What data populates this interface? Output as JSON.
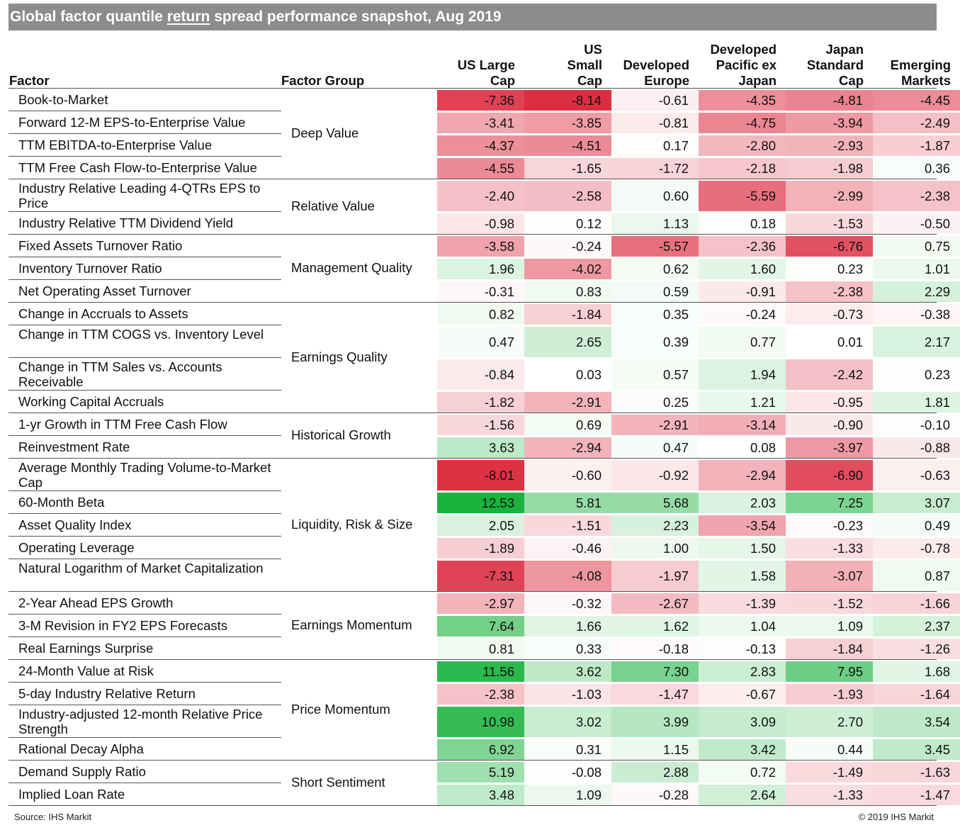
{
  "title": {
    "before": "Global factor quantile ",
    "underlined": "return",
    "after": " spread performance snapshot, Aug 2019"
  },
  "headers": {
    "factor": "Factor",
    "group": "Factor Group",
    "columns": [
      "US Large\nCap",
      "US\nSmall\nCap",
      "Developed\nEurope",
      "Developed\nPacific ex\nJapan",
      "Japan\nStandard\nCap",
      "Emerging\nMarkets"
    ]
  },
  "colors": {
    "negative": "#dc2c40",
    "positive": "#18b23c",
    "neutral": "#ffffff",
    "title_bar": "#8c8c8c"
  },
  "chart_data": {
    "type": "table",
    "title": "Global factor quantile return spread performance snapshot, Aug 2019",
    "columns": [
      "US Large Cap",
      "US Small Cap",
      "Developed Europe",
      "Developed Pacific ex Japan",
      "Japan Standard Cap",
      "Emerging Markets"
    ],
    "groups": [
      {
        "name": "Deep Value",
        "rows": [
          {
            "factor": "Book-to-Market",
            "values": [
              -7.36,
              -8.14,
              -0.61,
              -4.35,
              -4.81,
              -4.45
            ],
            "labels": [
              "-7.36",
              "-8.14",
              "-0.61",
              "-4.35",
              "-4.81",
              "-4.45"
            ]
          },
          {
            "factor": "Forward 12-M EPS-to-Enterprise Value",
            "values": [
              -3.41,
              -3.85,
              -0.81,
              -4.75,
              -3.94,
              -2.49
            ],
            "labels": [
              "-3.41",
              "-3.85",
              "-0.81",
              "-4.75",
              "-3.94",
              "-2.49"
            ]
          },
          {
            "factor": "TTM EBITDA-to-Enterprise Value",
            "values": [
              -4.37,
              -4.51,
              0.17,
              -2.8,
              -2.93,
              -1.87
            ],
            "labels": [
              "-4.37",
              "-4.51",
              "0.17",
              "-2.80",
              "-2.93",
              "-1.87"
            ]
          },
          {
            "factor": "TTM Free Cash Flow-to-Enterprise Value",
            "values": [
              -4.55,
              -1.65,
              -1.72,
              -2.18,
              -1.98,
              0.36
            ],
            "labels": [
              "-4.55",
              "-1.65",
              "-1.72",
              "-2.18",
              "-1.98",
              "0.36"
            ]
          }
        ]
      },
      {
        "name": "Relative Value",
        "rows": [
          {
            "factor": "Industry Relative Leading 4-QTRs EPS to Price",
            "values": [
              -2.4,
              -2.58,
              0.6,
              -5.59,
              -2.99,
              -2.38
            ],
            "labels": [
              "-2.40",
              "-2.58",
              "0.60",
              "-5.59",
              "-2.99",
              "-2.38"
            ]
          },
          {
            "factor": "Industry Relative TTM Dividend Yield",
            "values": [
              -0.98,
              0.12,
              1.13,
              0.18,
              -1.53,
              -0.5
            ],
            "labels": [
              "-0.98",
              "0.12",
              "1.13",
              "0.18",
              "-1.53",
              "-0.50"
            ]
          }
        ]
      },
      {
        "name": "Management Quality",
        "rows": [
          {
            "factor": "Fixed Assets Turnover Ratio",
            "values": [
              -3.58,
              -0.24,
              -5.57,
              -2.36,
              -6.76,
              0.75
            ],
            "labels": [
              "-3.58",
              "-0.24",
              "-5.57",
              "-2.36",
              "-6.76",
              "0.75"
            ]
          },
          {
            "factor": "Inventory Turnover Ratio",
            "values": [
              1.96,
              -4.02,
              0.62,
              1.6,
              0.23,
              1.01
            ],
            "labels": [
              "1.96",
              "-4.02",
              "0.62",
              "1.60",
              "0.23",
              "1.01"
            ]
          },
          {
            "factor": "Net Operating Asset Turnover",
            "values": [
              -0.31,
              0.83,
              0.59,
              -0.91,
              -2.38,
              2.29
            ],
            "labels": [
              "-0.31",
              "0.83",
              "0.59",
              "-0.91",
              "-2.38",
              "2.29"
            ]
          }
        ]
      },
      {
        "name": "Earnings Quality",
        "rows": [
          {
            "factor": "Change in Accruals to Assets",
            "values": [
              0.82,
              -1.84,
              0.35,
              -0.24,
              -0.73,
              -0.38
            ],
            "labels": [
              "0.82",
              "-1.84",
              "0.35",
              "-0.24",
              "-0.73",
              "-0.38"
            ]
          },
          {
            "factor": "Change in TTM COGS vs. Inventory Level",
            "values": [
              0.47,
              2.65,
              0.39,
              0.77,
              0.01,
              2.17
            ],
            "labels": [
              "0.47",
              "2.65",
              "0.39",
              "0.77",
              "0.01",
              "2.17"
            ]
          },
          {
            "factor": "Change in TTM Sales vs. Accounts Receivable",
            "values": [
              -0.84,
              0.03,
              0.57,
              1.94,
              -2.42,
              0.23
            ],
            "labels": [
              "-0.84",
              "0.03",
              "0.57",
              "1.94",
              "-2.42",
              "0.23"
            ]
          },
          {
            "factor": "Working Capital Accruals",
            "values": [
              -1.82,
              -2.91,
              0.25,
              1.21,
              -0.95,
              1.81
            ],
            "labels": [
              "-1.82",
              "-2.91",
              "0.25",
              "1.21",
              "-0.95",
              "1.81"
            ]
          }
        ]
      },
      {
        "name": "Historical Growth",
        "rows": [
          {
            "factor": "1-yr Growth in TTM Free Cash Flow",
            "values": [
              -1.56,
              0.69,
              -2.91,
              -3.14,
              -0.9,
              -0.1
            ],
            "labels": [
              "-1.56",
              "0.69",
              "-2.91",
              "-3.14",
              "-0.90",
              "-0.10"
            ]
          },
          {
            "factor": "Reinvestment Rate",
            "values": [
              3.63,
              -2.94,
              0.47,
              0.08,
              -3.97,
              -0.88
            ],
            "labels": [
              "3.63",
              "-2.94",
              "0.47",
              "0.08",
              "-3.97",
              "-0.88"
            ]
          }
        ]
      },
      {
        "name": "Liquidity, Risk & Size",
        "rows": [
          {
            "factor": "Average Monthly Trading Volume-to-Market Cap",
            "values": [
              -8.01,
              -0.6,
              -0.92,
              -2.94,
              -6.9,
              -0.63
            ],
            "labels": [
              "-8.01",
              "-0.60",
              "-0.92",
              "-2.94",
              "-6.90",
              "-0.63"
            ]
          },
          {
            "factor": "60-Month Beta",
            "values": [
              12.53,
              5.81,
              5.68,
              2.03,
              7.25,
              3.07
            ],
            "labels": [
              "12.53",
              "5.81",
              "5.68",
              "2.03",
              "7.25",
              "3.07"
            ]
          },
          {
            "factor": "Asset Quality Index",
            "values": [
              2.05,
              -1.51,
              2.23,
              -3.54,
              -0.23,
              0.49
            ],
            "labels": [
              "2.05",
              "-1.51",
              "2.23",
              "-3.54",
              "-0.23",
              "0.49"
            ]
          },
          {
            "factor": "Operating Leverage",
            "values": [
              -1.89,
              -0.46,
              1.0,
              1.5,
              -1.33,
              -0.78
            ],
            "labels": [
              "-1.89",
              "-0.46",
              "1.00",
              "1.50",
              "-1.33",
              "-0.78"
            ]
          },
          {
            "factor": "Natural Logarithm of Market Capitalization",
            "values": [
              -7.31,
              -4.08,
              -1.97,
              1.58,
              -3.07,
              0.87
            ],
            "labels": [
              "-7.31",
              "-4.08",
              "-1.97",
              "1.58",
              "-3.07",
              "0.87"
            ]
          }
        ]
      },
      {
        "name": "Earnings Momentum",
        "rows": [
          {
            "factor": "2-Year Ahead EPS Growth",
            "values": [
              -2.97,
              -0.32,
              -2.67,
              -1.39,
              -1.52,
              -1.66
            ],
            "labels": [
              "-2.97",
              "-0.32",
              "-2.67",
              "-1.39",
              "-1.52",
              "-1.66"
            ]
          },
          {
            "factor": "3-M Revision in FY2 EPS Forecasts",
            "values": [
              7.64,
              1.66,
              1.62,
              1.04,
              1.09,
              2.37
            ],
            "labels": [
              "7.64",
              "1.66",
              "1.62",
              "1.04",
              "1.09",
              "2.37"
            ]
          },
          {
            "factor": "Real Earnings Surprise",
            "values": [
              0.81,
              0.33,
              -0.18,
              -0.13,
              -1.84,
              -1.26
            ],
            "labels": [
              "0.81",
              "0.33",
              "-0.18",
              "-0.13",
              "-1.84",
              "-1.26"
            ]
          }
        ]
      },
      {
        "name": "Price Momentum",
        "rows": [
          {
            "factor": "24-Month Value at Risk",
            "values": [
              11.56,
              3.62,
              7.3,
              2.83,
              7.95,
              1.68
            ],
            "labels": [
              "11.56",
              "3.62",
              "7.30",
              "2.83",
              "7.95",
              "1.68"
            ]
          },
          {
            "factor": "5-day Industry Relative Return",
            "values": [
              -2.38,
              -1.03,
              -1.47,
              -0.67,
              -1.93,
              -1.64
            ],
            "labels": [
              "-2.38",
              "-1.03",
              "-1.47",
              "-0.67",
              "-1.93",
              "-1.64"
            ]
          },
          {
            "factor": "Industry-adjusted 12-month Relative Price Strength",
            "values": [
              10.98,
              3.02,
              3.99,
              3.09,
              2.7,
              3.54
            ],
            "labels": [
              "10.98",
              "3.02",
              "3.99",
              "3.09",
              "2.70",
              "3.54"
            ]
          },
          {
            "factor": "Rational Decay Alpha",
            "values": [
              6.92,
              0.31,
              1.15,
              3.42,
              0.44,
              3.45
            ],
            "labels": [
              "6.92",
              "0.31",
              "1.15",
              "3.42",
              "0.44",
              "3.45"
            ]
          }
        ]
      },
      {
        "name": "Short Sentiment",
        "rows": [
          {
            "factor": "Demand Supply Ratio",
            "values": [
              5.19,
              -0.08,
              2.88,
              0.72,
              -1.49,
              -1.63
            ],
            "labels": [
              "5.19",
              "-0.08",
              "2.88",
              "0.72",
              "-1.49",
              "-1.63"
            ]
          },
          {
            "factor": "Implied Loan Rate",
            "values": [
              3.48,
              1.09,
              -0.28,
              2.64,
              -1.33,
              -1.47
            ],
            "labels": [
              "3.48",
              "1.09",
              "-0.28",
              "2.64",
              "-1.33",
              "-1.47"
            ]
          }
        ]
      }
    ]
  },
  "footer": {
    "source": "Source: IHS Markit",
    "copyright": "© 2019 IHS Markit"
  }
}
